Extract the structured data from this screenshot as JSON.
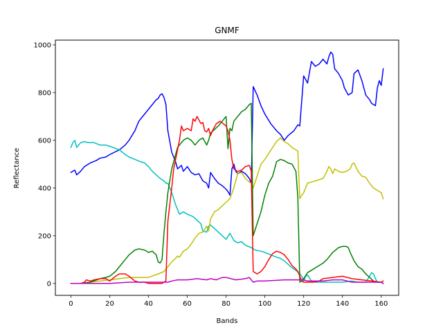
{
  "chart_data": {
    "type": "line",
    "title": "GNMF",
    "xlabel": "Bands",
    "ylabel": "Reflectance",
    "xlim": [
      -8,
      169
    ],
    "ylim": [
      -50,
      1020
    ],
    "xticks": [
      0,
      20,
      40,
      60,
      80,
      100,
      120,
      140,
      160
    ],
    "yticks": [
      0,
      200,
      400,
      600,
      800,
      1000
    ],
    "grid": false,
    "series": [
      {
        "color": "#0000ff",
        "x": [
          0,
          2,
          3,
          5,
          7,
          10,
          13,
          15,
          18,
          20,
          25,
          28,
          30,
          33,
          35,
          37,
          40,
          42,
          44,
          45,
          46,
          47,
          48,
          49,
          50,
          52,
          54,
          55,
          57,
          58,
          60,
          62,
          64,
          66,
          68,
          70,
          71,
          72,
          74,
          76,
          78,
          80,
          81,
          82,
          83,
          84,
          85,
          86,
          88,
          90,
          92,
          93,
          94,
          96,
          98,
          100,
          103,
          106,
          108,
          110,
          112,
          115,
          117,
          118,
          120,
          121,
          122,
          124,
          126,
          128,
          130,
          132,
          133,
          134,
          135,
          136,
          138,
          140,
          141,
          143,
          145,
          146,
          148,
          150,
          152,
          154,
          155,
          157,
          158,
          159,
          160,
          161
        ],
        "y": [
          465,
          475,
          455,
          470,
          490,
          505,
          515,
          525,
          530,
          540,
          560,
          580,
          600,
          640,
          680,
          700,
          730,
          750,
          770,
          775,
          790,
          795,
          780,
          750,
          640,
          550,
          510,
          480,
          495,
          470,
          490,
          465,
          455,
          460,
          430,
          420,
          400,
          465,
          440,
          420,
          410,
          395,
          385,
          370,
          480,
          500,
          470,
          460,
          470,
          460,
          440,
          420,
          825,
          790,
          745,
          710,
          670,
          640,
          625,
          600,
          620,
          640,
          665,
          660,
          870,
          855,
          840,
          930,
          910,
          920,
          940,
          920,
          950,
          970,
          960,
          900,
          880,
          850,
          820,
          790,
          800,
          880,
          895,
          850,
          790,
          770,
          755,
          745,
          820,
          850,
          830,
          900
        ]
      },
      {
        "color": "#00bfbf",
        "x": [
          0,
          1,
          2,
          3,
          5,
          7,
          9,
          12,
          15,
          18,
          20,
          25,
          28,
          30,
          33,
          36,
          38,
          40,
          42,
          44,
          46,
          48,
          49,
          50,
          52,
          54,
          56,
          58,
          60,
          63,
          65,
          67,
          68,
          70,
          71,
          72,
          74,
          76,
          78,
          80,
          82,
          84,
          86,
          88,
          90,
          93,
          95,
          98,
          100,
          103,
          106,
          108,
          110,
          112,
          114,
          116,
          118,
          119,
          120,
          121,
          122,
          124,
          126,
          128,
          130,
          135,
          140,
          145,
          148,
          150,
          152,
          154,
          155,
          156,
          157,
          158,
          160,
          161
        ],
        "y": [
          570,
          590,
          600,
          570,
          590,
          595,
          590,
          590,
          580,
          580,
          575,
          560,
          540,
          530,
          520,
          510,
          505,
          490,
          470,
          455,
          440,
          430,
          420,
          420,
          380,
          330,
          290,
          300,
          290,
          280,
          265,
          250,
          220,
          215,
          240,
          245,
          230,
          215,
          200,
          185,
          210,
          180,
          170,
          175,
          160,
          150,
          140,
          135,
          130,
          120,
          110,
          105,
          95,
          80,
          65,
          55,
          40,
          30,
          10,
          30,
          35,
          10,
          5,
          5,
          5,
          5,
          5,
          10,
          5,
          5,
          5,
          30,
          45,
          40,
          20,
          5,
          5,
          0
        ]
      },
      {
        "color": "#bfbf00",
        "x": [
          0,
          5,
          10,
          15,
          20,
          25,
          30,
          35,
          40,
          45,
          48,
          50,
          52,
          54,
          55,
          56,
          58,
          60,
          62,
          64,
          66,
          68,
          70,
          71,
          72,
          74,
          76,
          78,
          80,
          82,
          84,
          86,
          88,
          90,
          92,
          93,
          94,
          96,
          98,
          100,
          102,
          104,
          106,
          108,
          110,
          112,
          114,
          116,
          117,
          118,
          119,
          120,
          122,
          124,
          126,
          128,
          130,
          132,
          133,
          134,
          135,
          136,
          138,
          140,
          142,
          144,
          145,
          146,
          148,
          150,
          152,
          154,
          156,
          158,
          160,
          161
        ],
        "y": [
          0,
          0,
          5,
          10,
          15,
          20,
          25,
          25,
          25,
          40,
          50,
          70,
          90,
          105,
          115,
          110,
          135,
          145,
          165,
          190,
          210,
          215,
          240,
          220,
          270,
          300,
          310,
          325,
          340,
          355,
          400,
          460,
          465,
          440,
          425,
          420,
          400,
          450,
          500,
          520,
          545,
          570,
          595,
          610,
          595,
          585,
          570,
          560,
          555,
          355,
          370,
          380,
          420,
          425,
          430,
          435,
          440,
          470,
          490,
          480,
          460,
          480,
          470,
          465,
          470,
          480,
          500,
          505,
          470,
          450,
          445,
          420,
          400,
          390,
          380,
          355
        ]
      },
      {
        "color": "#008000",
        "x": [
          0,
          5,
          10,
          15,
          18,
          20,
          23,
          25,
          28,
          30,
          33,
          35,
          38,
          40,
          42,
          44,
          45,
          46,
          47,
          48,
          49,
          50,
          52,
          54,
          55,
          56,
          58,
          60,
          62,
          64,
          66,
          68,
          70,
          71,
          72,
          74,
          76,
          78,
          79,
          80,
          81,
          82,
          83,
          84,
          85,
          86,
          88,
          90,
          91,
          92,
          93,
          94,
          96,
          98,
          100,
          102,
          104,
          106,
          108,
          110,
          112,
          114,
          116,
          117,
          118,
          119,
          120,
          122,
          124,
          126,
          128,
          130,
          132,
          135,
          138,
          140,
          142,
          143,
          144,
          146,
          148,
          150,
          152,
          154,
          156,
          158,
          160,
          161
        ],
        "y": [
          0,
          0,
          5,
          20,
          25,
          30,
          50,
          70,
          100,
          120,
          140,
          145,
          140,
          130,
          135,
          120,
          90,
          85,
          100,
          210,
          300,
          380,
          480,
          540,
          570,
          580,
          600,
          610,
          600,
          580,
          600,
          610,
          580,
          600,
          630,
          645,
          660,
          680,
          690,
          700,
          565,
          650,
          640,
          680,
          690,
          700,
          720,
          730,
          740,
          750,
          755,
          200,
          250,
          300,
          370,
          420,
          450,
          510,
          520,
          515,
          505,
          500,
          470,
          360,
          5,
          10,
          20,
          45,
          55,
          65,
          75,
          85,
          100,
          130,
          150,
          155,
          155,
          150,
          130,
          95,
          70,
          60,
          40,
          25,
          10,
          5,
          5,
          0
        ]
      },
      {
        "color": "#ff0000",
        "x": [
          0,
          5,
          7,
          8,
          10,
          12,
          15,
          18,
          20,
          23,
          25,
          28,
          30,
          33,
          35,
          38,
          40,
          43,
          45,
          47,
          49,
          50,
          52,
          53,
          55,
          56,
          57,
          58,
          60,
          62,
          63,
          64,
          65,
          67,
          68,
          69,
          70,
          71,
          72,
          73,
          75,
          77,
          80,
          81,
          82,
          83,
          84,
          86,
          88,
          90,
          92,
          93,
          94,
          96,
          98,
          100,
          102,
          104,
          106,
          108,
          110,
          112,
          114,
          116,
          117,
          118,
          119,
          120,
          122,
          125,
          128,
          130,
          135,
          140,
          145,
          150,
          155,
          160,
          161
        ],
        "y": [
          0,
          0,
          5,
          15,
          10,
          15,
          20,
          20,
          10,
          30,
          40,
          40,
          30,
          10,
          5,
          5,
          0,
          0,
          0,
          0,
          10,
          260,
          400,
          480,
          560,
          600,
          660,
          640,
          650,
          640,
          690,
          680,
          700,
          670,
          675,
          640,
          635,
          650,
          620,
          640,
          670,
          680,
          660,
          640,
          600,
          520,
          480,
          470,
          475,
          490,
          495,
          470,
          50,
          40,
          50,
          70,
          100,
          125,
          135,
          130,
          120,
          100,
          75,
          60,
          50,
          30,
          10,
          5,
          5,
          5,
          10,
          20,
          25,
          30,
          20,
          15,
          10,
          5,
          10
        ]
      },
      {
        "color": "#bf00bf",
        "x": [
          0,
          10,
          20,
          30,
          40,
          45,
          50,
          52,
          55,
          60,
          65,
          70,
          72,
          75,
          78,
          80,
          85,
          90,
          92,
          94,
          96,
          100,
          110,
          120,
          122,
          125,
          130,
          135,
          140,
          145,
          150,
          155,
          160,
          161
        ],
        "y": [
          0,
          0,
          0,
          5,
          5,
          5,
          5,
          10,
          15,
          15,
          20,
          15,
          20,
          15,
          25,
          25,
          15,
          20,
          25,
          5,
          10,
          10,
          15,
          15,
          10,
          10,
          10,
          15,
          15,
          5,
          5,
          5,
          5,
          0
        ]
      }
    ]
  }
}
